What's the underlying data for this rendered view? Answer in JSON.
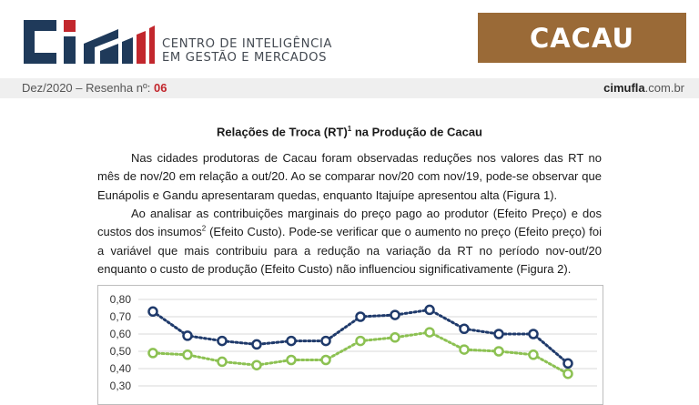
{
  "header": {
    "org_line1": "CENTRO DE INTELIGÊNCIA",
    "org_line2": "EM GESTÃO E MERCADOS",
    "product_badge": "CACAU",
    "issue_prefix": "Dez/2020 – Resenha nº:",
    "issue_number": "06",
    "site_bold": "cimufla",
    "site_rest": ".com.br"
  },
  "document": {
    "title": "Relações de Troca (RT)",
    "title_note": "1",
    "title_suffix": " na Produção de Cacau",
    "paragraph1": "Nas cidades produtoras de Cacau foram observadas reduções nos valores das RT no mês de nov/20 em relação a out/20. Ao se comparar nov/20 com nov/19, pode-se observar que Eunápolis e Gandu apresentaram quedas, enquanto Itajuípe apresentou alta (Figura 1).",
    "paragraph2_part1": "Ao analisar as contribuições marginais do preço pago ao produtor (Efeito Preço) e dos custos dos insumos",
    "paragraph2_note": "2",
    "paragraph2_part2": " (Efeito Custo). Pode-se verificar que o aumento no preço (Efeito preço) foi a variável que mais contribuiu para a redução na variação da RT no período nov-out/20 enquanto o custo de produção (Efeito Custo) não influenciou significativamente (Figura 2)."
  },
  "colors": {
    "logo_blue": "#1f3a5a",
    "logo_red": "#c2272d",
    "badge_brown": "#9a6a37",
    "series_navy": "#1f3a6b",
    "series_green": "#8cc152"
  },
  "chart_data": {
    "type": "line",
    "y_tick_labels": [
      "0,80",
      "0,70",
      "0,60",
      "0,50",
      "0,40",
      "0,30"
    ],
    "ylim": [
      0.3,
      0.8
    ],
    "grid": true,
    "series": [
      {
        "values": [
          0.73,
          0.59,
          0.56,
          0.54,
          0.56,
          0.56,
          0.7,
          0.71,
          0.74,
          0.63,
          0.6,
          0.6,
          0.43
        ]
      },
      {
        "values": [
          0.49,
          0.48,
          0.44,
          0.42,
          0.45,
          0.45,
          0.56,
          0.58,
          0.61,
          0.51,
          0.5,
          0.48,
          0.37
        ]
      }
    ]
  }
}
